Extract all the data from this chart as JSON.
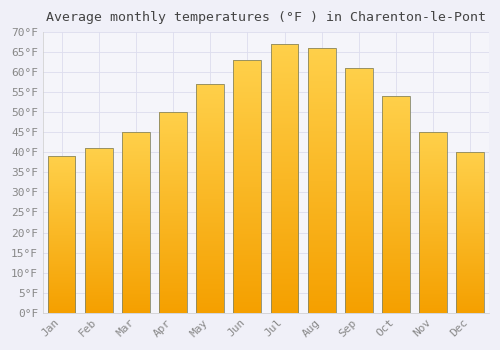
{
  "title": "Average monthly temperatures (°F ) in Charenton-le-Pont",
  "months": [
    "Jan",
    "Feb",
    "Mar",
    "Apr",
    "May",
    "Jun",
    "Jul",
    "Aug",
    "Sep",
    "Oct",
    "Nov",
    "Dec"
  ],
  "values": [
    39,
    41,
    45,
    50,
    57,
    63,
    67,
    66,
    61,
    54,
    45,
    40
  ],
  "bar_color_top": "#FFD04A",
  "bar_color_bottom": "#F5A000",
  "bar_edge_color": "#888866",
  "background_color": "#F0F0F8",
  "plot_bg_color": "#F5F5FA",
  "grid_color": "#DDDDEE",
  "title_color": "#444444",
  "tick_label_color": "#888888",
  "ylim": [
    0,
    70
  ],
  "ytick_step": 5,
  "title_fontsize": 9.5,
  "tick_fontsize": 8,
  "bar_width": 0.75
}
